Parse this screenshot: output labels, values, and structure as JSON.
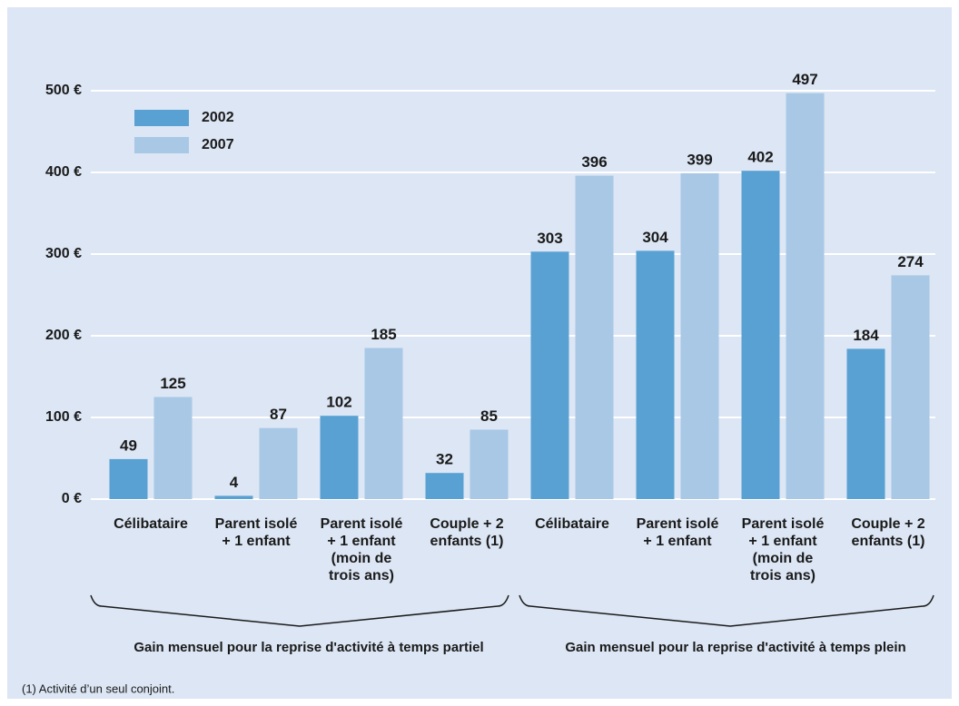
{
  "chart_data": {
    "type": "bar",
    "categories": [
      [
        "Célibataire"
      ],
      [
        "Parent isolé",
        "+ 1 enfant"
      ],
      [
        "Parent isolé",
        "+ 1 enfant",
        "(moin de",
        "trois ans)"
      ],
      [
        "Couple + 2",
        "enfants (1)"
      ],
      [
        "Célibataire"
      ],
      [
        "Parent isolé",
        "+ 1 enfant"
      ],
      [
        "Parent isolé",
        "+ 1 enfant",
        "(moin de",
        "trois ans)"
      ],
      [
        "Couple + 2",
        "enfants (1)"
      ]
    ],
    "series": [
      {
        "name": "2002",
        "color": "#5aa1d3",
        "values": [
          49,
          4,
          102,
          32,
          303,
          304,
          402,
          184
        ]
      },
      {
        "name": "2007",
        "color": "#a8c8e6",
        "values": [
          125,
          87,
          185,
          85,
          396,
          399,
          497,
          274
        ]
      }
    ],
    "ylim": [
      0,
      500
    ],
    "yticks": [
      {
        "value": 0,
        "label": "0 €"
      },
      {
        "value": 100,
        "label": "100 €"
      },
      {
        "value": 200,
        "label": "200 €"
      },
      {
        "value": 300,
        "label": "300 €"
      },
      {
        "value": 400,
        "label": "400 €"
      },
      {
        "value": 500,
        "label": "500 €"
      }
    ],
    "grid": true,
    "legend": "upper left",
    "group_labels": [
      "Gain mensuel pour la reprise d'activité à temps partiel",
      "Gain mensuel pour la reprise d'activité à temps plein"
    ],
    "footnote": "(1) Activité d’un seul conjoint."
  }
}
